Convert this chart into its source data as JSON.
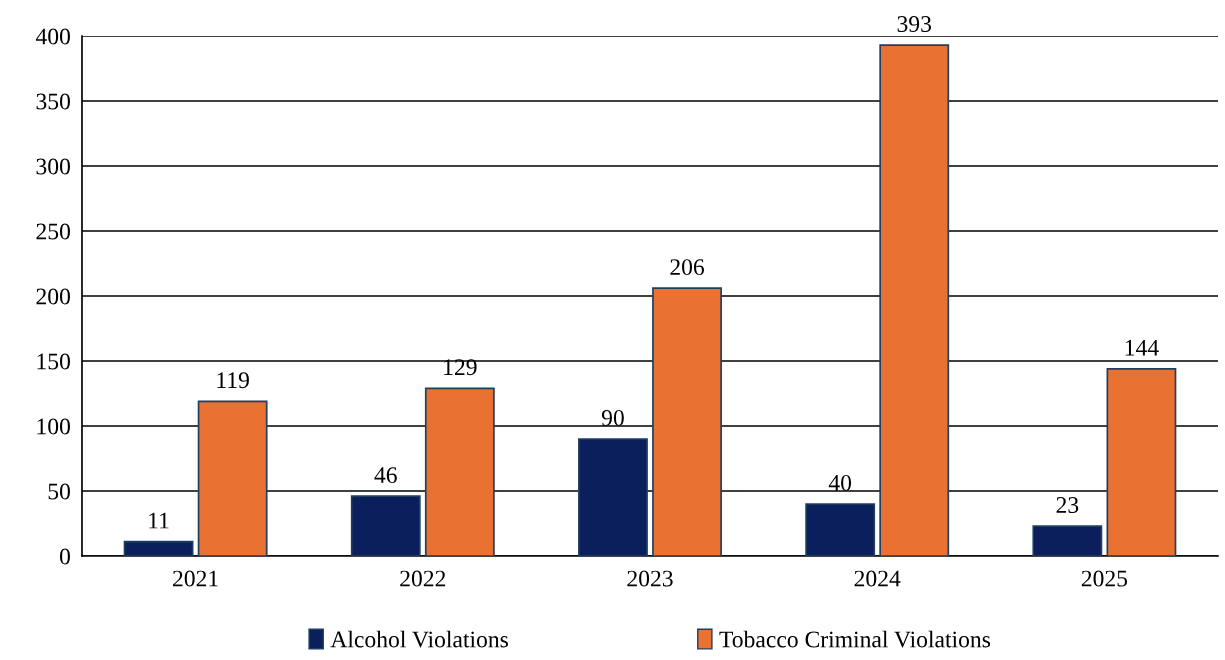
{
  "chart_data": {
    "type": "bar",
    "categories": [
      "2021",
      "2022",
      "2023",
      "2024",
      "2025"
    ],
    "series": [
      {
        "name": "Alcohol Violations",
        "color": "#0b1f5c",
        "values": [
          11,
          46,
          90,
          40,
          23
        ]
      },
      {
        "name": "Tobacco Criminal Violations",
        "color": "#e97132",
        "values": [
          119,
          129,
          206,
          393,
          144
        ]
      }
    ],
    "ylim": [
      0,
      400
    ],
    "yticks": [
      0,
      50,
      100,
      150,
      200,
      250,
      300,
      350,
      400
    ],
    "grid": "y",
    "legend": "bottom",
    "data_labels": true
  }
}
